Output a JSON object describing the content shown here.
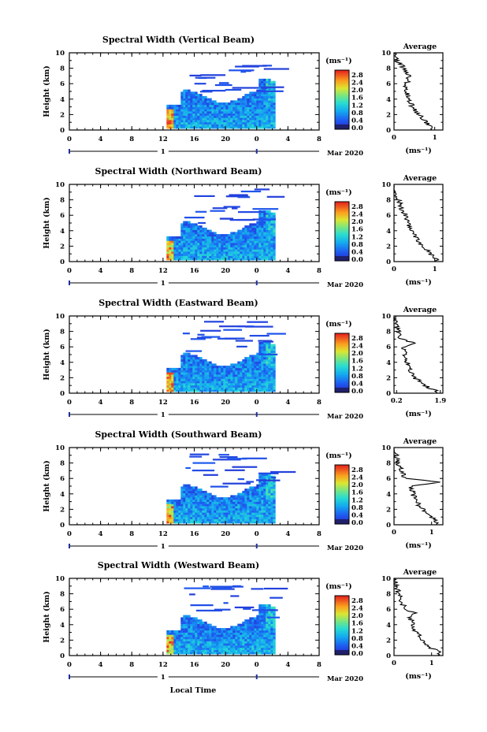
{
  "chart_data": [
    {
      "type": "heatmap",
      "title": "Spectral Width (Vertical Beam)",
      "ylabel": "Height (km)",
      "ylim": [
        0,
        10
      ],
      "xlim": [
        0,
        8
      ],
      "xticks": [
        "0",
        "4",
        "8",
        "12",
        "16",
        "20",
        "0",
        "4",
        "8"
      ],
      "colorbar": {
        "unit": "(ms⁻¹)",
        "ticks": [
          "2.8",
          "2.4",
          "2.0",
          "1.6",
          "1.2",
          "0.8",
          "0.4",
          "0.0"
        ],
        "range": [
          0,
          2.8
        ]
      },
      "avg": {
        "title": "Average",
        "xlabel": "(ms⁻¹)",
        "xticks": [
          "0",
          "1"
        ],
        "xlim": [
          0,
          1.2
        ],
        "ylim": [
          0,
          10
        ],
        "height": [
          0,
          1,
          2,
          3,
          4,
          5,
          6,
          7,
          8,
          9,
          10
        ],
        "value": [
          1.0,
          0.8,
          0.6,
          0.45,
          0.38,
          0.32,
          0.3,
          0.4,
          0.25,
          0.08,
          0.0
        ]
      }
    },
    {
      "type": "heatmap",
      "title": "Spectral Width (Northward Beam)",
      "ylabel": "Height (km)",
      "ylim": [
        0,
        10
      ],
      "xlim": [
        0,
        8
      ],
      "xticks": [
        "0",
        "4",
        "8",
        "12",
        "16",
        "20",
        "0",
        "4",
        "8"
      ],
      "colorbar": {
        "unit": "(ms⁻¹)",
        "ticks": [
          "2.8",
          "2.4",
          "2.0",
          "1.6",
          "1.2",
          "0.8",
          "0.4",
          "0.0"
        ],
        "range": [
          0,
          2.8
        ]
      },
      "avg": {
        "title": "Average",
        "xlabel": "(ms⁻¹)",
        "xticks": [
          "0",
          "1"
        ],
        "xlim": [
          0,
          1.2
        ],
        "ylim": [
          0,
          10
        ],
        "height": [
          0,
          1,
          2,
          3,
          4,
          5,
          6,
          7,
          8,
          9,
          10
        ],
        "value": [
          1.1,
          0.9,
          0.7,
          0.55,
          0.42,
          0.35,
          0.28,
          0.18,
          0.1,
          0.04,
          0.0
        ]
      }
    },
    {
      "type": "heatmap",
      "title": "Spectral Width (Eastward Beam)",
      "ylabel": "Height (km)",
      "ylim": [
        0,
        10
      ],
      "xlim": [
        0,
        8
      ],
      "xticks": [
        "0",
        "4",
        "8",
        "12",
        "16",
        "20",
        "0",
        "4",
        "8"
      ],
      "colorbar": {
        "unit": "(ms⁻¹)",
        "ticks": [
          "2.8",
          "2.4",
          "2.0",
          "1.6",
          "1.2",
          "0.8",
          "0.4",
          "0.0"
        ],
        "range": [
          0,
          2.8
        ]
      },
      "avg": {
        "title": "Average",
        "xlabel": "(ms⁻¹)",
        "xticks": [
          "0.2",
          "1.9"
        ],
        "xlim": [
          0.1,
          2.0
        ],
        "ylim": [
          0,
          10
        ],
        "height": [
          0,
          1,
          2,
          3,
          4,
          5,
          6,
          6.5,
          7,
          8,
          9,
          10
        ],
        "value": [
          1.9,
          1.3,
          0.9,
          0.75,
          0.6,
          0.5,
          0.45,
          0.9,
          0.35,
          0.25,
          0.15,
          0.1
        ]
      }
    },
    {
      "type": "heatmap",
      "title": "Spectral Width (Southward Beam)",
      "ylabel": "Height (km)",
      "ylim": [
        0,
        10
      ],
      "xlim": [
        0,
        8
      ],
      "xticks": [
        "0",
        "4",
        "8",
        "12",
        "16",
        "20",
        "0",
        "4",
        "8"
      ],
      "colorbar": {
        "unit": "(ms⁻¹)",
        "ticks": [
          "2.8",
          "2.4",
          "2.0",
          "1.6",
          "1.2",
          "0.8",
          "0.4",
          "0.0"
        ],
        "range": [
          0,
          2.8
        ]
      },
      "avg": {
        "title": "Average",
        "xlabel": "(ms⁻¹)",
        "xticks": [
          "0",
          "1"
        ],
        "xlim": [
          0,
          1.3
        ],
        "ylim": [
          0,
          10
        ],
        "height": [
          0,
          1,
          2,
          3,
          4,
          5,
          5.5,
          6,
          7,
          8,
          9,
          10
        ],
        "value": [
          1.2,
          1.0,
          0.75,
          0.6,
          0.5,
          0.45,
          1.3,
          0.3,
          0.2,
          0.1,
          0.05,
          0.0
        ]
      }
    },
    {
      "type": "heatmap",
      "title": "Spectral Width (Westward Beam)",
      "ylabel": "Height (km)",
      "ylim": [
        0,
        10
      ],
      "xlim": [
        0,
        8
      ],
      "xticks": [
        "0",
        "4",
        "8",
        "12",
        "16",
        "20",
        "0",
        "4",
        "8"
      ],
      "colorbar": {
        "unit": "(ms⁻¹)",
        "ticks": [
          "2.8",
          "2.4",
          "2.0",
          "1.6",
          "1.2",
          "0.8",
          "0.4",
          "0.0"
        ],
        "range": [
          0,
          2.8
        ]
      },
      "avg": {
        "title": "Average",
        "xlabel": "(ms⁻¹)",
        "xticks": [
          "0",
          "1"
        ],
        "xlim": [
          0,
          1.3
        ],
        "ylim": [
          0,
          10
        ],
        "height": [
          0,
          0.5,
          1,
          2,
          3,
          4,
          5,
          5.5,
          6,
          7,
          8,
          9,
          10
        ],
        "value": [
          1.25,
          1.2,
          0.95,
          0.75,
          0.6,
          0.5,
          0.42,
          0.55,
          0.3,
          0.2,
          0.12,
          0.05,
          0.0
        ]
      }
    }
  ],
  "date_axis": {
    "day_label": "1",
    "date_text": "Mar 2020"
  },
  "xlabel": "Local Time",
  "colors": {
    "empty": "#ffffff",
    "baseband": "#1f1f6b"
  }
}
